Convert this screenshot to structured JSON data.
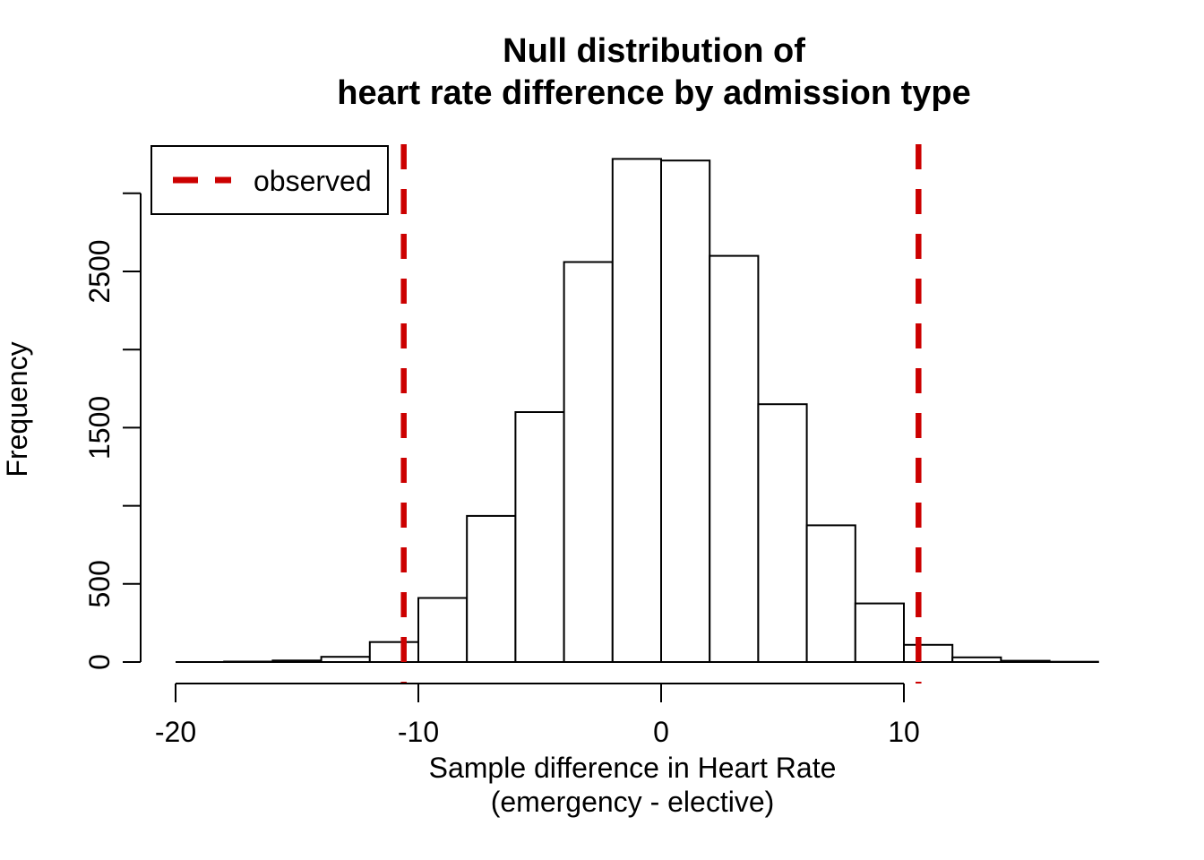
{
  "figure": {
    "background_color": "#FFFFFF"
  },
  "chart_data": {
    "type": "bar",
    "subtype": "histogram",
    "title_line1": "Null distribution of",
    "title_line2": "heart rate difference by admission type",
    "ylabel": "Frequency",
    "xlabel_line1": "Sample difference in Heart Rate",
    "xlabel_line2": "(emergency - elective)",
    "bin_edges": [
      -20,
      -18,
      -16,
      -14,
      -12,
      -10,
      -8,
      -6,
      -4,
      -2,
      0,
      2,
      4,
      6,
      8,
      10,
      12,
      14,
      16,
      18
    ],
    "counts": [
      0,
      3,
      10,
      33,
      128,
      410,
      935,
      1600,
      2560,
      3220,
      3210,
      2600,
      1650,
      875,
      375,
      110,
      30,
      8,
      2
    ],
    "xlim": [
      -20,
      18
    ],
    "ylim": [
      0,
      3000
    ],
    "x_ticks": {
      "values": [
        -20,
        -10,
        0,
        10
      ],
      "labels": [
        "-20",
        "-10",
        "0",
        "10"
      ]
    },
    "y_ticks": {
      "values": [
        0,
        500,
        1000,
        1500,
        2000,
        2500,
        3000
      ],
      "labels": [
        "0",
        "500",
        "",
        "1500",
        "",
        "2500",
        ""
      ]
    },
    "observed_values": [
      -10.6,
      10.6
    ],
    "legend": {
      "label": "observed",
      "position": "topleft",
      "line_style": "dashed"
    },
    "grid": false,
    "colors": {
      "observed_line": "#CC0000",
      "bar_fill": "#FFFFFF",
      "bar_stroke": "#000000",
      "axis": "#000000",
      "text": "#000000"
    }
  }
}
